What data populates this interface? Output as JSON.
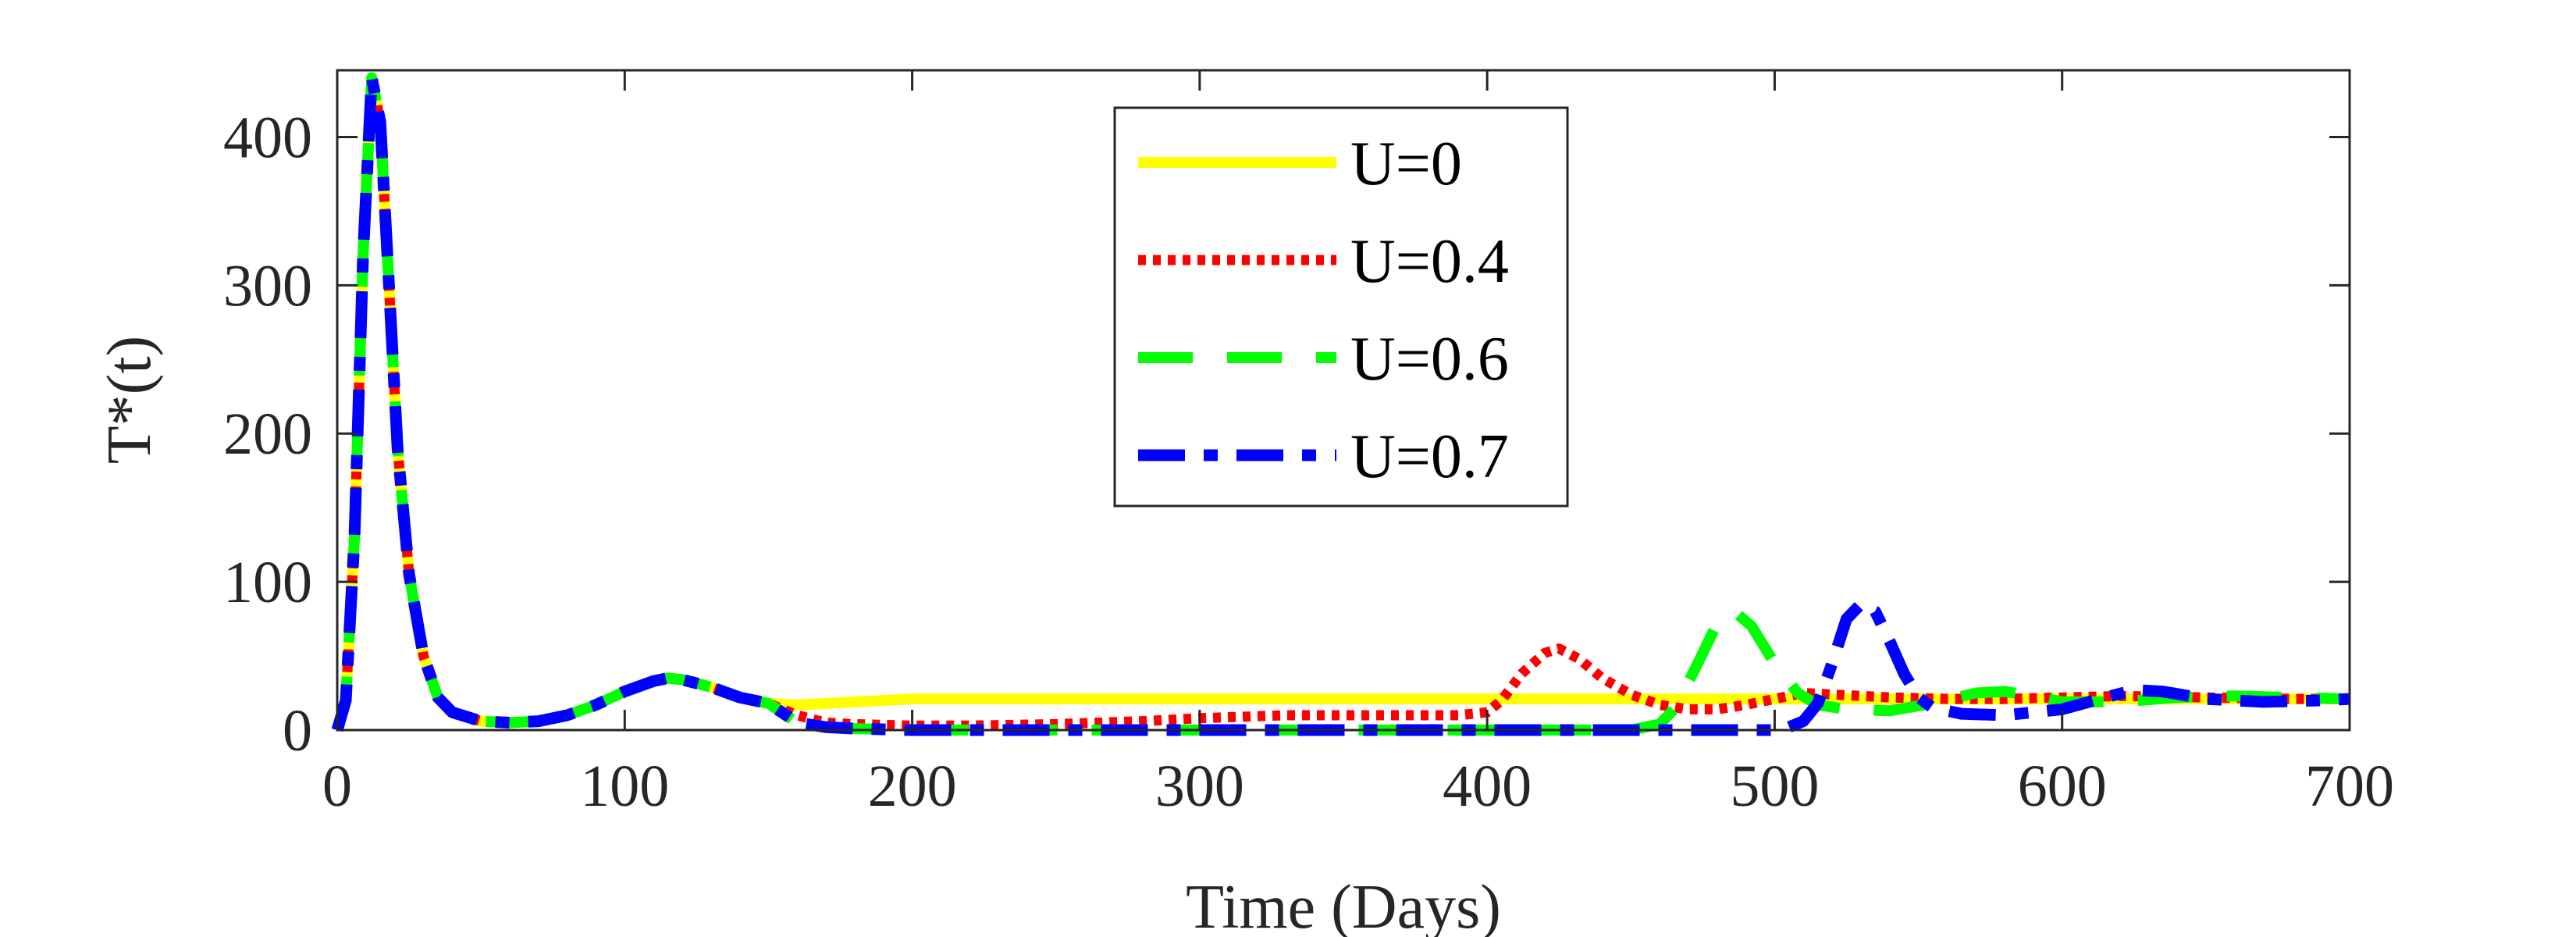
{
  "chart_data": {
    "type": "line",
    "title": "",
    "xlabel": "Time (Days)",
    "ylabel": "T*(t)",
    "xlim": [
      0,
      700
    ],
    "ylim": [
      0,
      445
    ],
    "xticks": [
      0,
      100,
      200,
      300,
      400,
      500,
      600,
      700
    ],
    "yticks": [
      0,
      100,
      200,
      300,
      400
    ],
    "grid": false,
    "legend_position": "top-center",
    "series": [
      {
        "name": "U=0",
        "color": "#ffff00",
        "line_style": "solid",
        "points": [
          [
            0,
            0
          ],
          [
            3,
            20
          ],
          [
            6,
            130
          ],
          [
            9,
            320
          ],
          [
            12,
            440
          ],
          [
            15,
            410
          ],
          [
            18,
            300
          ],
          [
            21,
            190
          ],
          [
            25,
            105
          ],
          [
            30,
            50
          ],
          [
            35,
            22
          ],
          [
            40,
            12
          ],
          [
            50,
            6
          ],
          [
            60,
            5
          ],
          [
            70,
            6
          ],
          [
            80,
            10
          ],
          [
            90,
            17
          ],
          [
            100,
            26
          ],
          [
            110,
            33
          ],
          [
            115,
            35
          ],
          [
            120,
            34
          ],
          [
            130,
            29
          ],
          [
            140,
            22
          ],
          [
            150,
            18
          ],
          [
            160,
            17
          ],
          [
            180,
            19
          ],
          [
            200,
            21
          ],
          [
            220,
            21
          ],
          [
            260,
            21
          ],
          [
            300,
            21
          ],
          [
            350,
            21
          ],
          [
            400,
            21
          ],
          [
            450,
            21
          ],
          [
            500,
            21
          ],
          [
            550,
            21
          ],
          [
            600,
            21
          ],
          [
            650,
            21
          ],
          [
            700,
            21
          ]
        ]
      },
      {
        "name": "U=0.4",
        "color": "#ff0000",
        "line_style": "dotted",
        "points": [
          [
            0,
            0
          ],
          [
            3,
            20
          ],
          [
            6,
            130
          ],
          [
            9,
            320
          ],
          [
            12,
            440
          ],
          [
            15,
            410
          ],
          [
            18,
            300
          ],
          [
            21,
            190
          ],
          [
            25,
            105
          ],
          [
            30,
            50
          ],
          [
            35,
            22
          ],
          [
            40,
            12
          ],
          [
            50,
            6
          ],
          [
            60,
            5
          ],
          [
            70,
            6
          ],
          [
            80,
            10
          ],
          [
            90,
            17
          ],
          [
            100,
            26
          ],
          [
            110,
            33
          ],
          [
            115,
            35
          ],
          [
            120,
            34
          ],
          [
            130,
            29
          ],
          [
            140,
            22
          ],
          [
            150,
            18
          ],
          [
            160,
            10
          ],
          [
            170,
            5
          ],
          [
            180,
            4
          ],
          [
            200,
            3
          ],
          [
            220,
            3
          ],
          [
            250,
            4
          ],
          [
            280,
            6
          ],
          [
            300,
            8
          ],
          [
            330,
            10
          ],
          [
            360,
            10
          ],
          [
            390,
            10
          ],
          [
            400,
            12
          ],
          [
            405,
            20
          ],
          [
            412,
            38
          ],
          [
            420,
            52
          ],
          [
            425,
            55
          ],
          [
            432,
            48
          ],
          [
            440,
            35
          ],
          [
            450,
            24
          ],
          [
            460,
            17
          ],
          [
            470,
            14
          ],
          [
            480,
            14
          ],
          [
            490,
            17
          ],
          [
            500,
            21
          ],
          [
            510,
            25
          ],
          [
            520,
            24
          ],
          [
            540,
            22
          ],
          [
            560,
            21
          ],
          [
            580,
            21
          ],
          [
            600,
            22
          ],
          [
            620,
            23
          ],
          [
            650,
            22
          ],
          [
            680,
            21
          ],
          [
            700,
            21
          ]
        ]
      },
      {
        "name": "U=0.6",
        "color": "#00ff00",
        "line_style": "dashed",
        "points": [
          [
            0,
            0
          ],
          [
            3,
            20
          ],
          [
            6,
            130
          ],
          [
            9,
            320
          ],
          [
            12,
            440
          ],
          [
            15,
            410
          ],
          [
            18,
            300
          ],
          [
            21,
            190
          ],
          [
            25,
            105
          ],
          [
            30,
            50
          ],
          [
            35,
            22
          ],
          [
            40,
            12
          ],
          [
            50,
            6
          ],
          [
            60,
            5
          ],
          [
            70,
            6
          ],
          [
            80,
            10
          ],
          [
            90,
            17
          ],
          [
            100,
            26
          ],
          [
            110,
            33
          ],
          [
            115,
            35
          ],
          [
            120,
            34
          ],
          [
            130,
            29
          ],
          [
            140,
            22
          ],
          [
            150,
            18
          ],
          [
            160,
            5
          ],
          [
            170,
            2
          ],
          [
            180,
            1
          ],
          [
            200,
            0
          ],
          [
            250,
            0
          ],
          [
            300,
            0
          ],
          [
            350,
            0
          ],
          [
            400,
            0
          ],
          [
            450,
            0
          ],
          [
            460,
            4
          ],
          [
            465,
            14
          ],
          [
            472,
            40
          ],
          [
            480,
            72
          ],
          [
            486,
            80
          ],
          [
            492,
            70
          ],
          [
            500,
            45
          ],
          [
            508,
            25
          ],
          [
            515,
            17
          ],
          [
            525,
            14
          ],
          [
            540,
            13
          ],
          [
            555,
            18
          ],
          [
            570,
            25
          ],
          [
            580,
            26
          ],
          [
            590,
            23
          ],
          [
            600,
            19
          ],
          [
            620,
            19
          ],
          [
            640,
            22
          ],
          [
            660,
            23
          ],
          [
            680,
            22
          ],
          [
            700,
            21
          ]
        ]
      },
      {
        "name": "U=0.7",
        "color": "#0000ff",
        "line_style": "dash-dot",
        "points": [
          [
            0,
            0
          ],
          [
            3,
            20
          ],
          [
            6,
            130
          ],
          [
            9,
            320
          ],
          [
            12,
            440
          ],
          [
            15,
            410
          ],
          [
            18,
            300
          ],
          [
            21,
            190
          ],
          [
            25,
            105
          ],
          [
            30,
            50
          ],
          [
            35,
            22
          ],
          [
            40,
            12
          ],
          [
            50,
            6
          ],
          [
            60,
            5
          ],
          [
            70,
            6
          ],
          [
            80,
            10
          ],
          [
            90,
            17
          ],
          [
            100,
            26
          ],
          [
            110,
            33
          ],
          [
            115,
            35
          ],
          [
            120,
            34
          ],
          [
            130,
            29
          ],
          [
            140,
            22
          ],
          [
            150,
            18
          ],
          [
            160,
            5
          ],
          [
            170,
            2
          ],
          [
            180,
            1
          ],
          [
            200,
            0
          ],
          [
            250,
            0
          ],
          [
            300,
            0
          ],
          [
            350,
            0
          ],
          [
            400,
            0
          ],
          [
            450,
            0
          ],
          [
            500,
            0
          ],
          [
            505,
            2
          ],
          [
            510,
            6
          ],
          [
            515,
            18
          ],
          [
            520,
            45
          ],
          [
            525,
            75
          ],
          [
            530,
            85
          ],
          [
            535,
            80
          ],
          [
            540,
            60
          ],
          [
            545,
            38
          ],
          [
            550,
            22
          ],
          [
            555,
            15
          ],
          [
            565,
            11
          ],
          [
            580,
            10
          ],
          [
            600,
            14
          ],
          [
            615,
            22
          ],
          [
            625,
            27
          ],
          [
            635,
            26
          ],
          [
            650,
            21
          ],
          [
            670,
            19
          ],
          [
            690,
            20
          ],
          [
            700,
            21
          ]
        ]
      }
    ]
  }
}
